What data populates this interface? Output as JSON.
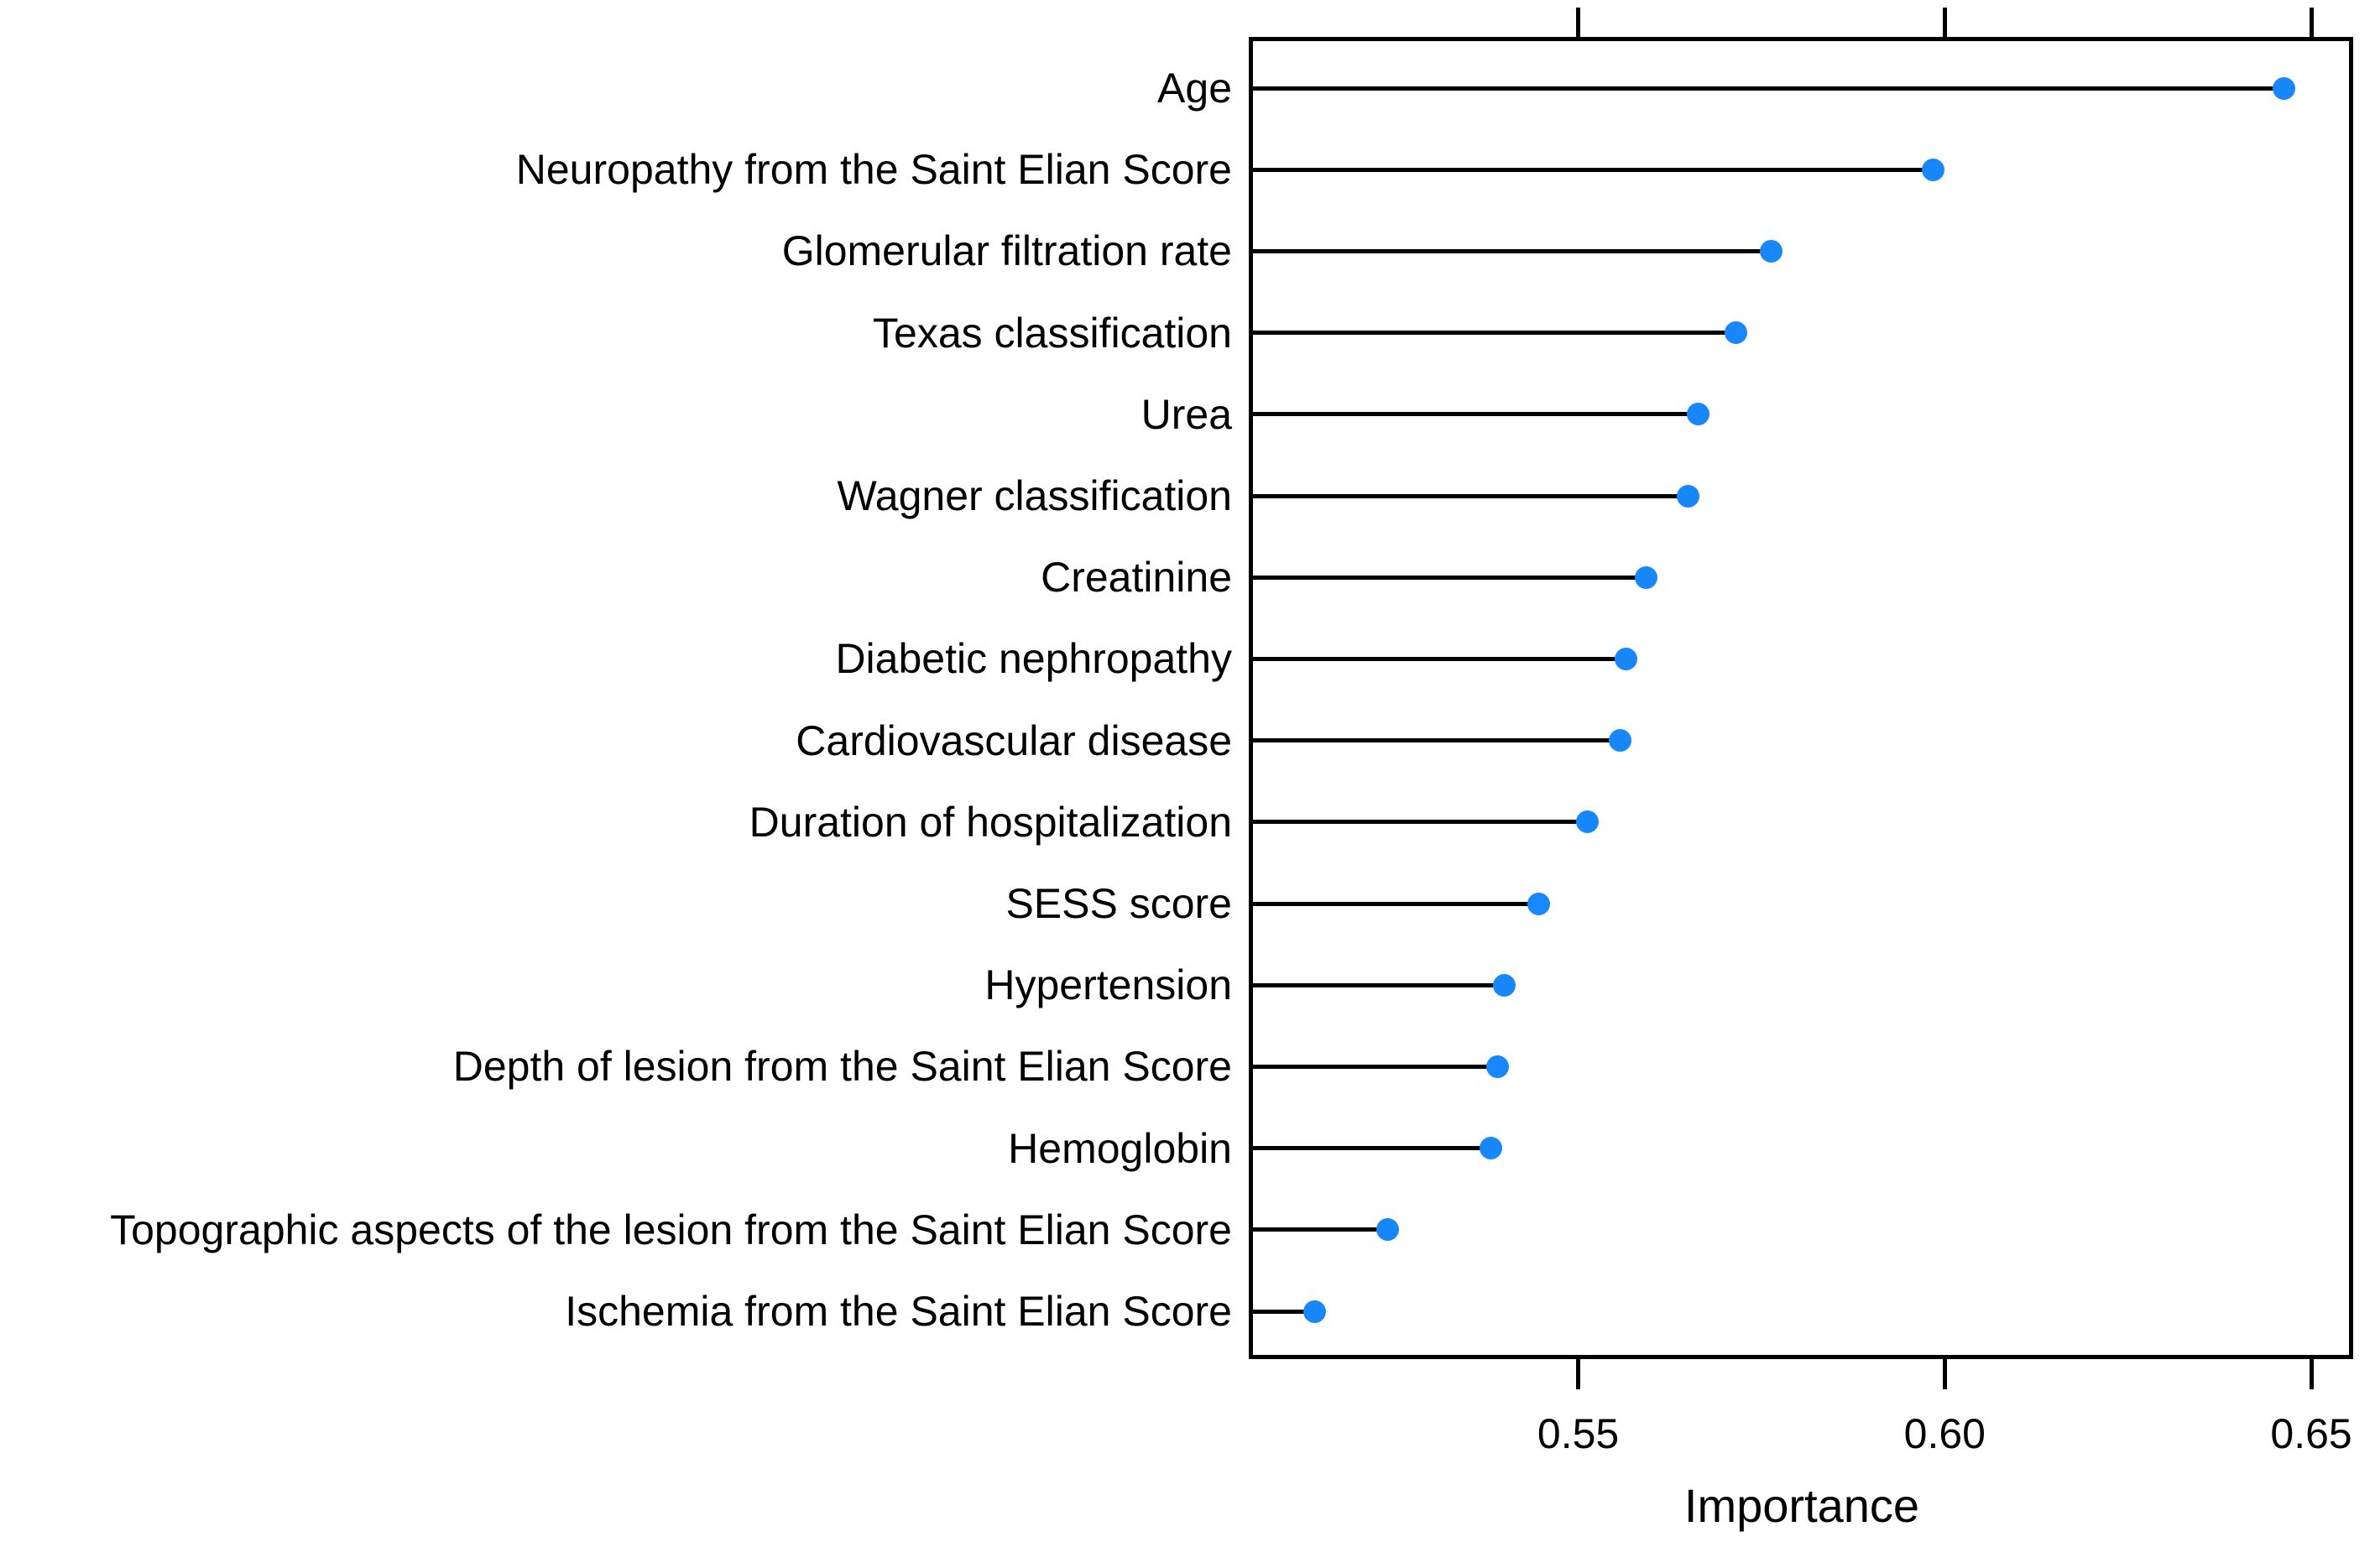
{
  "figure": {
    "background_color": "#ffffff",
    "axis_color": "#000000",
    "dot_color": "#1787FB"
  },
  "chart_data": {
    "type": "scatter",
    "subtype": "dot-plot-lollipop",
    "title": "",
    "xlabel": "Importance",
    "ylabel": "",
    "grid": false,
    "legend": null,
    "xlim": [
      0.5054,
      0.6556
    ],
    "xticks": [
      {
        "value": 0.55,
        "label": "0.55"
      },
      {
        "value": 0.6,
        "label": "0.60"
      },
      {
        "value": 0.65,
        "label": "0.65"
      }
    ],
    "tick_sides": [
      "top",
      "bottom"
    ],
    "categories": [
      "Age",
      "Neuropathy from the Saint Elian Score",
      "Glomerular filtration rate",
      "Texas classification",
      "Urea",
      "Wagner classification",
      "Creatinine",
      "Diabetic nephropathy",
      "Cardiovascular disease",
      "Duration of hospitalization",
      "SESS score",
      "Hypertension",
      "Depth of lesion from the Saint Elian Score",
      "Hemoglobin",
      "Topographic aspects of the lesion from the Saint Elian Score",
      "Ischemia from the Saint Elian Score"
    ],
    "values": [
      0.6463,
      0.5984,
      0.5763,
      0.5715,
      0.5664,
      0.565,
      0.5593,
      0.5565,
      0.5557,
      0.5513,
      0.5446,
      0.5399,
      0.539,
      0.5381,
      0.524,
      0.5141
    ]
  }
}
